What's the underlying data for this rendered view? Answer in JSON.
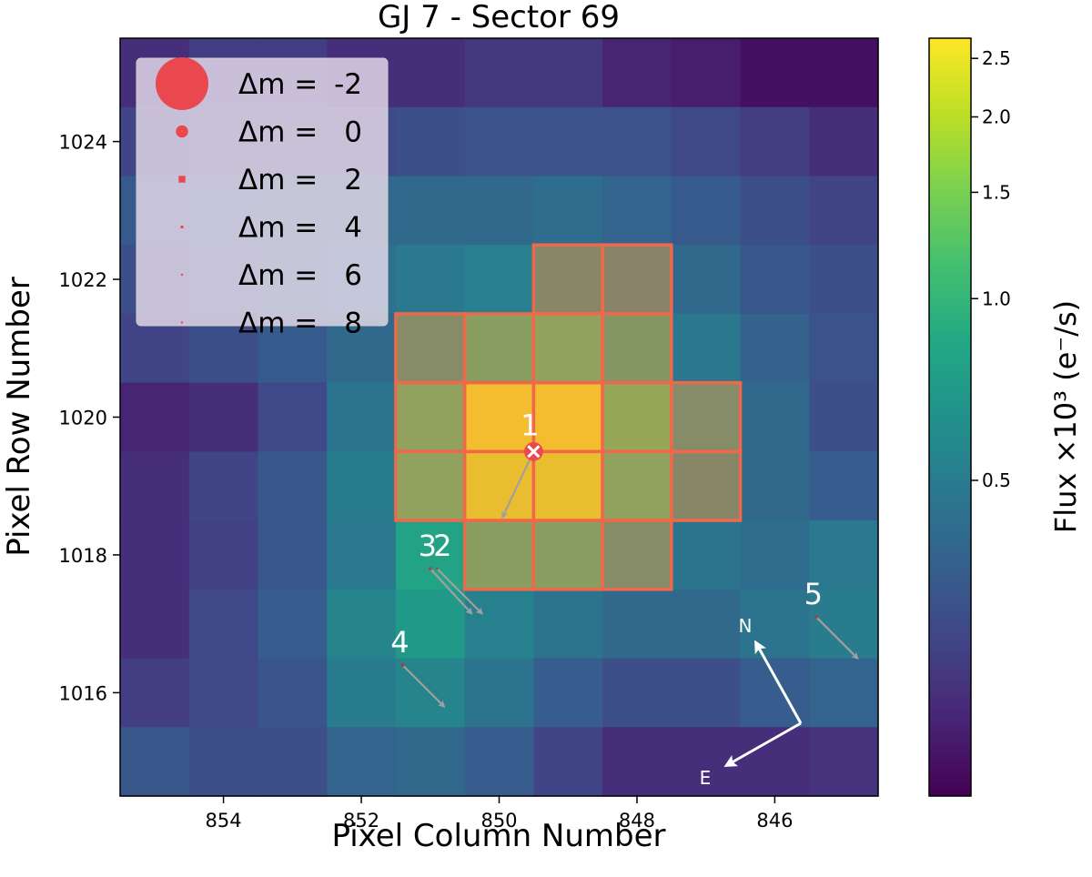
{
  "chart_data": {
    "type": "heatmap",
    "title": "GJ 7 - Sector 69",
    "xlabel": "Pixel Column Number",
    "ylabel": "Pixel Row Number",
    "colorbar_label": "Flux ×10³ (e⁻/s)",
    "x_reversed": true,
    "xlim": [
      855.5,
      844.5
    ],
    "ylim": [
      1014.5,
      1025.5
    ],
    "x_ticks": [
      854,
      852,
      850,
      848,
      846
    ],
    "y_ticks": [
      1016,
      1018,
      1020,
      1022,
      1024
    ],
    "x_tick_labels": [
      "854",
      "852",
      "850",
      "848",
      "846"
    ],
    "y_tick_labels": [
      "1016",
      "1018",
      "1020",
      "1022",
      "1024"
    ],
    "columns": [
      855,
      854,
      853,
      852,
      851,
      850,
      849,
      848,
      847,
      846,
      845
    ],
    "rows": [
      1025,
      1024,
      1023,
      1022,
      1021,
      1020,
      1019,
      1018,
      1017,
      1016,
      1015
    ],
    "grid_values": [
      [
        0.22,
        0.25,
        0.25,
        0.22,
        0.22,
        0.24,
        0.24,
        0.2,
        0.19,
        0.17,
        0.17
      ],
      [
        0.27,
        0.28,
        0.28,
        0.28,
        0.3,
        0.31,
        0.31,
        0.31,
        0.28,
        0.25,
        0.22
      ],
      [
        0.34,
        0.35,
        0.38,
        0.4,
        0.4,
        0.4,
        0.42,
        0.38,
        0.34,
        0.3,
        0.27
      ],
      [
        0.3,
        0.33,
        0.38,
        0.44,
        0.48,
        0.52,
        0.55,
        0.5,
        0.4,
        0.33,
        0.3
      ],
      [
        0.27,
        0.3,
        0.34,
        0.4,
        0.6,
        0.9,
        1.0,
        0.75,
        0.47,
        0.37,
        0.31
      ],
      [
        0.2,
        0.22,
        0.28,
        0.45,
        1.0,
        2.5,
        2.5,
        1.1,
        0.6,
        0.4,
        0.3
      ],
      [
        0.22,
        0.27,
        0.33,
        0.5,
        1.0,
        2.3,
        2.3,
        1.0,
        0.55,
        0.4,
        0.35
      ],
      [
        0.22,
        0.26,
        0.33,
        0.48,
        0.8,
        0.9,
        0.9,
        0.6,
        0.45,
        0.42,
        0.48
      ],
      [
        0.22,
        0.28,
        0.35,
        0.55,
        0.7,
        0.52,
        0.45,
        0.4,
        0.4,
        0.45,
        0.5
      ],
      [
        0.25,
        0.28,
        0.32,
        0.5,
        0.55,
        0.45,
        0.35,
        0.3,
        0.3,
        0.35,
        0.38
      ],
      [
        0.33,
        0.3,
        0.3,
        0.38,
        0.4,
        0.35,
        0.27,
        0.22,
        0.22,
        0.22,
        0.23
      ]
    ],
    "aperture_pixels": [
      [
        849,
        1022
      ],
      [
        848,
        1022
      ],
      [
        851,
        1021
      ],
      [
        850,
        1021
      ],
      [
        849,
        1021
      ],
      [
        848,
        1021
      ],
      [
        851,
        1020
      ],
      [
        850,
        1020
      ],
      [
        849,
        1020
      ],
      [
        848,
        1020
      ],
      [
        847,
        1020
      ],
      [
        851,
        1019
      ],
      [
        850,
        1019
      ],
      [
        849,
        1019
      ],
      [
        848,
        1019
      ],
      [
        847,
        1019
      ],
      [
        850,
        1018
      ],
      [
        849,
        1018
      ],
      [
        848,
        1018
      ]
    ],
    "colorbar": {
      "ticks": [
        2.5,
        2.0,
        1.5,
        1.0,
        0.5
      ],
      "tick_labels": [
        "2.5",
        "2.0",
        "1.5",
        "1.0",
        "0.5"
      ],
      "min": 0.15,
      "max": 2.7
    },
    "stars": [
      {
        "label": "1",
        "x": 849.5,
        "y": 1019.5,
        "dm": 0,
        "target": true,
        "pm_dx": 0.45,
        "pm_dy": -0.95
      },
      {
        "label": "2",
        "x": 850.9,
        "y": 1017.8,
        "dm": 6,
        "target": false,
        "pm_dx": -0.65,
        "pm_dy": -0.65
      },
      {
        "label": "3",
        "x": 851.0,
        "y": 1017.8,
        "dm": 4,
        "target": false,
        "pm_dx": -0.6,
        "pm_dy": -0.65
      },
      {
        "label": "4",
        "x": 851.4,
        "y": 1016.4,
        "dm": 4,
        "target": false,
        "pm_dx": -0.6,
        "pm_dy": -0.6
      },
      {
        "label": "5",
        "x": 845.4,
        "y": 1017.1,
        "dm": 4,
        "target": false,
        "pm_dx": -0.6,
        "pm_dy": -0.6
      }
    ],
    "legend": {
      "position": "top-left",
      "entries": [
        {
          "prefix": "Δm =",
          "value": "-2"
        },
        {
          "prefix": "Δm =",
          "value": "0"
        },
        {
          "prefix": "Δm =",
          "value": "2"
        },
        {
          "prefix": "Δm =",
          "value": "4"
        },
        {
          "prefix": "Δm =",
          "value": "6"
        },
        {
          "prefix": "Δm =",
          "value": "8"
        }
      ]
    },
    "compass": {
      "north_label": "N",
      "east_label": "E"
    }
  },
  "colors": {
    "aperture_edge": "#f0684a",
    "aperture_fill": "#ff8c3c",
    "star_marker": "#e8484e",
    "pm_arrow": "#a0a0a0",
    "star_label": "#ffffff",
    "target_cross": "#ffffff",
    "legend_bg": "#e6dcea"
  }
}
